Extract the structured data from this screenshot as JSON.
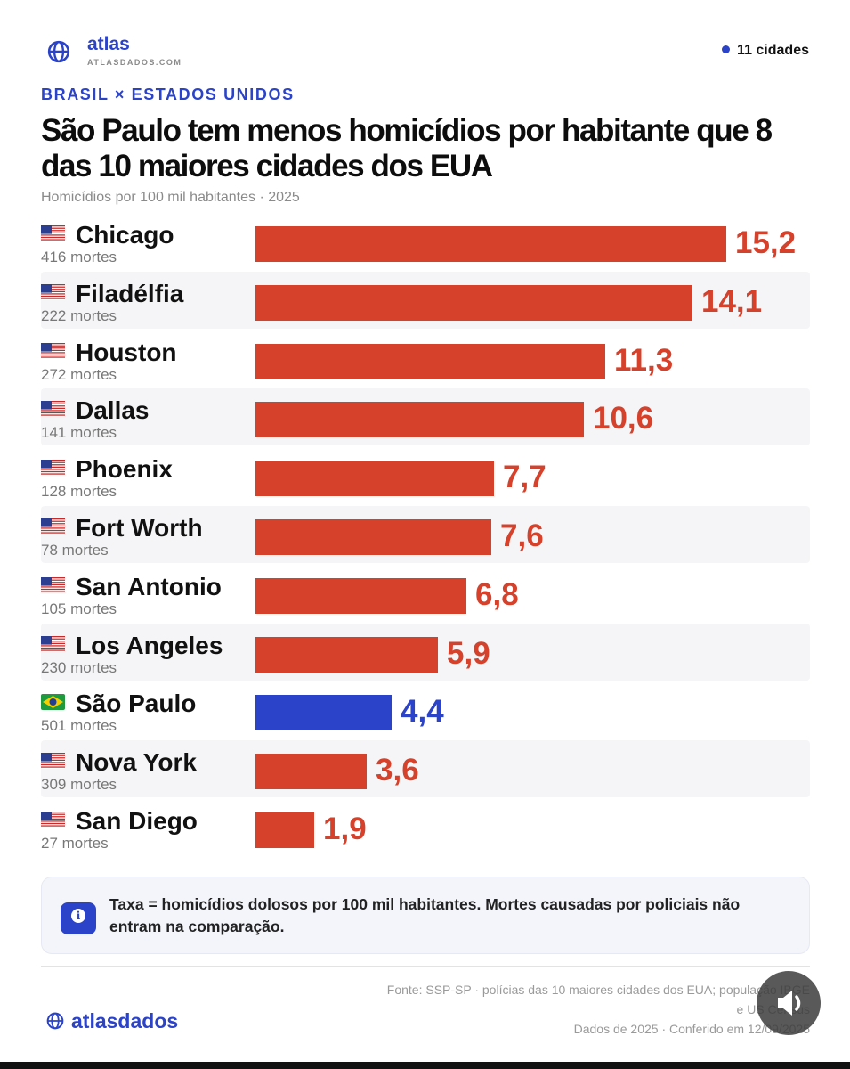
{
  "header": {
    "brand": "atlas",
    "brand_url": "ATLASDADOS.COM",
    "count_label": "11 cidades"
  },
  "kicker": "BRASIL × ESTADOS UNIDOS",
  "title": "São Paulo tem menos homicídios por habitante que 8 das 10 maiores cidades dos EUA",
  "subtitle": "Homicídios por 100 mil habitantes · 2025",
  "colors": {
    "us": "#d5412b",
    "br": "#2b43c9",
    "accent": "#2b43c9"
  },
  "chart_data": {
    "type": "bar",
    "orientation": "horizontal",
    "title": "São Paulo tem menos homicídios por habitante que 8 das 10 maiores cidades dos EUA",
    "subtitle": "Homicídios por 100 mil habitantes · 2025",
    "xlim": [
      0,
      15.2
    ],
    "grid": false,
    "rows": [
      {
        "city": "Chicago",
        "deaths": "416 mortes",
        "value": 15.2,
        "label": "15,2",
        "country": "us"
      },
      {
        "city": "Filadélfia",
        "deaths": "222 mortes",
        "value": 14.1,
        "label": "14,1",
        "country": "us"
      },
      {
        "city": "Houston",
        "deaths": "272 mortes",
        "value": 11.3,
        "label": "11,3",
        "country": "us"
      },
      {
        "city": "Dallas",
        "deaths": "141 mortes",
        "value": 10.6,
        "label": "10,6",
        "country": "us"
      },
      {
        "city": "Phoenix",
        "deaths": "128 mortes",
        "value": 7.7,
        "label": "7,7",
        "country": "us"
      },
      {
        "city": "Fort Worth",
        "deaths": "78 mortes",
        "value": 7.6,
        "label": "7,6",
        "country": "us"
      },
      {
        "city": "San Antonio",
        "deaths": "105 mortes",
        "value": 6.8,
        "label": "6,8",
        "country": "us"
      },
      {
        "city": "Los Angeles",
        "deaths": "230 mortes",
        "value": 5.9,
        "label": "5,9",
        "country": "us"
      },
      {
        "city": "São Paulo",
        "deaths": "501 mortes",
        "value": 4.4,
        "label": "4,4",
        "country": "br"
      },
      {
        "city": "Nova York",
        "deaths": "309 mortes",
        "value": 3.6,
        "label": "3,6",
        "country": "us"
      },
      {
        "city": "San Diego",
        "deaths": "27 mortes",
        "value": 1.9,
        "label": "1,9",
        "country": "us"
      }
    ]
  },
  "note": {
    "icon": "info-icon",
    "text": "Taxa = homicídios dolosos por 100 mil habitantes. Mortes causadas por policiais não entram na comparação."
  },
  "footer": {
    "brand": "atlasdados",
    "source_line1": "Fonte: SSP-SP · polícias das 10 maiores cidades dos EUA; população IBGE",
    "source_line2": "e US Census",
    "dates": "Dados de 2025 · Conferido em 12/09/2025"
  }
}
